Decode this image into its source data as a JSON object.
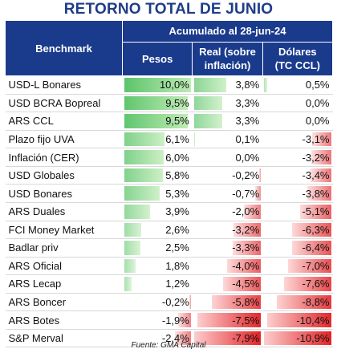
{
  "title": "RETORNO TOTAL DE JUNIO",
  "source": "Fuente: GMA Capital",
  "colors": {
    "header_bg": "#1a3a8c",
    "title": "#1f3c88",
    "positive": "#5cc36a",
    "negative": "#e8262b"
  },
  "chart_data": {
    "type": "table",
    "title": "RETORNO TOTAL DE JUNIO",
    "row_header": "Benchmark",
    "group_header": "Acumulado al 28-jun-24",
    "columns": [
      {
        "key": "pesos",
        "label": "Pesos"
      },
      {
        "key": "real",
        "label_line1": "Real (sobre",
        "label_line2": "inflación)"
      },
      {
        "key": "usd",
        "label_line1": "Dólares",
        "label_line2": "(TC CCL)"
      }
    ],
    "column_scale_max": [
      10.0,
      7.9,
      10.9
    ],
    "rows": [
      {
        "name": "USD-L Bonares",
        "pesos": "10,0%",
        "real": "3,8%",
        "usd": "0,5%",
        "values": [
          10.0,
          3.8,
          0.5
        ]
      },
      {
        "name": "USD BCRA Bopreal",
        "pesos": "9,5%",
        "real": "3,3%",
        "usd": "0,0%",
        "values": [
          9.5,
          3.3,
          0.0
        ]
      },
      {
        "name": "ARS CCL",
        "pesos": "9,5%",
        "real": "3,3%",
        "usd": "0,0%",
        "values": [
          9.5,
          3.3,
          0.0
        ]
      },
      {
        "name": "Plazo fijo UVA",
        "pesos": "6,1%",
        "real": "0,1%",
        "usd": "-3,1%",
        "values": [
          6.1,
          0.1,
          -3.1
        ]
      },
      {
        "name": "Inflación (CER)",
        "pesos": "6,0%",
        "real": "0,0%",
        "usd": "-3,2%",
        "values": [
          6.0,
          0.0,
          -3.2
        ]
      },
      {
        "name": "USD Globales",
        "pesos": "5,8%",
        "real": "-0,2%",
        "usd": "-3,4%",
        "values": [
          5.8,
          -0.2,
          -3.4
        ]
      },
      {
        "name": "USD Bonares",
        "pesos": "5,3%",
        "real": "-0,7%",
        "usd": "-3,8%",
        "values": [
          5.3,
          -0.7,
          -3.8
        ]
      },
      {
        "name": "ARS Duales",
        "pesos": "3,9%",
        "real": "-2,0%",
        "usd": "-5,1%",
        "values": [
          3.9,
          -2.0,
          -5.1
        ]
      },
      {
        "name": "FCI Money Market",
        "pesos": "2,6%",
        "real": "-3,2%",
        "usd": "-6,3%",
        "values": [
          2.6,
          -3.2,
          -6.3
        ]
      },
      {
        "name": "Badlar priv",
        "pesos": "2,5%",
        "real": "-3,3%",
        "usd": "-6,4%",
        "values": [
          2.5,
          -3.3,
          -6.4
        ]
      },
      {
        "name": "ARS Oficial",
        "pesos": "1,8%",
        "real": "-4,0%",
        "usd": "-7,0%",
        "values": [
          1.8,
          -4.0,
          -7.0
        ]
      },
      {
        "name": "ARS Lecap",
        "pesos": "1,2%",
        "real": "-4,5%",
        "usd": "-7,6%",
        "values": [
          1.2,
          -4.5,
          -7.6
        ]
      },
      {
        "name": "ARS Boncer",
        "pesos": "-0,2%",
        "real": "-5,8%",
        "usd": "-8,8%",
        "values": [
          -0.2,
          -5.8,
          -8.8
        ]
      },
      {
        "name": "ARS Botes",
        "pesos": "-1,9%",
        "real": "-7,5%",
        "usd": "-10,4%",
        "values": [
          -1.9,
          -7.5,
          -10.4
        ]
      },
      {
        "name": "S&P Merval",
        "pesos": "-2,4%",
        "real": "-7,9%",
        "usd": "-10,9%",
        "values": [
          -2.4,
          -7.9,
          -10.9
        ]
      }
    ]
  }
}
